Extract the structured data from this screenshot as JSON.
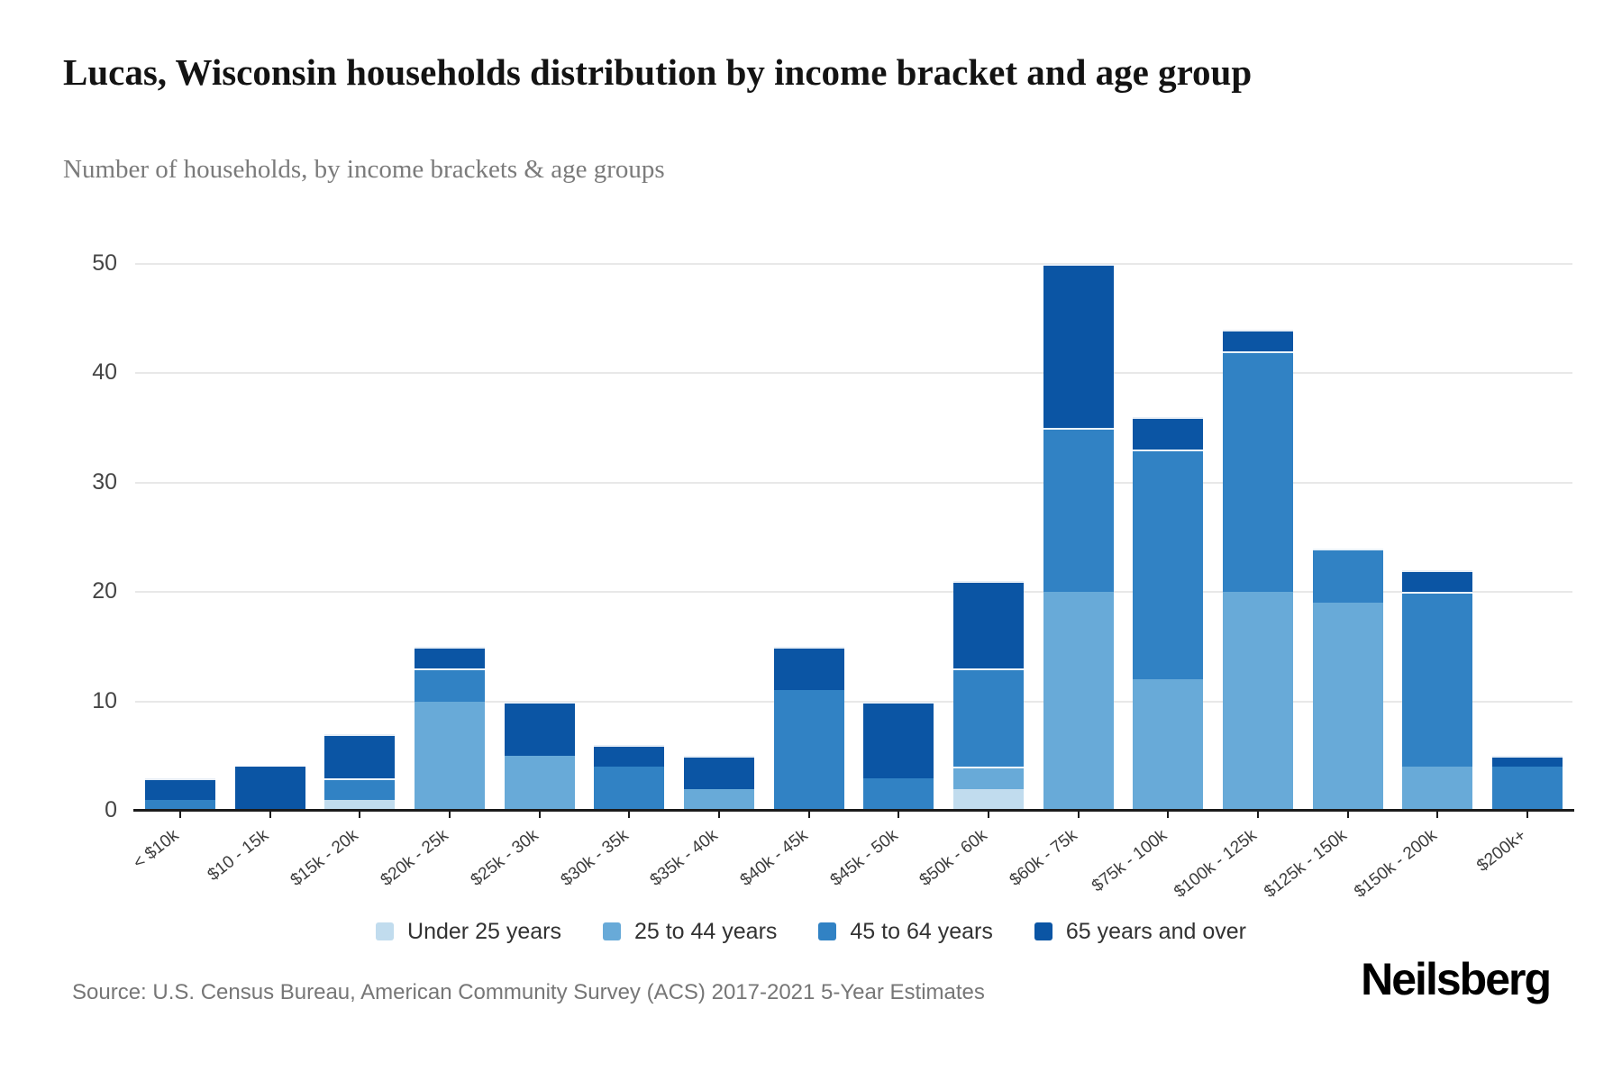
{
  "header": {
    "title": "Lucas, Wisconsin households distribution by income bracket and age group",
    "subtitle": "Number of households, by income brackets & age groups"
  },
  "footer": {
    "source": "Source: U.S. Census Bureau, American Community Survey (ACS) 2017-2021 5-Year Estimates",
    "brand": "Neilsberg"
  },
  "colors": {
    "axis": "#1b1b1b",
    "gridline": "#e8e8e8",
    "title_text": "#131313",
    "subtitle_text": "#7b7b7b",
    "tick_text": "#454545",
    "source_text": "#767676"
  },
  "chart_data": {
    "type": "bar",
    "stacked": true,
    "title": "Lucas, Wisconsin households distribution by income bracket and age group",
    "subtitle": "Number of households, by income brackets & age groups",
    "xlabel": "",
    "ylabel": "Number of households",
    "ylim": [
      0,
      50
    ],
    "yticks": [
      0,
      10,
      20,
      30,
      40,
      50
    ],
    "grid": "horizontal",
    "legend_position": "bottom",
    "categories": [
      "< $10k",
      "$10 - 15k",
      "$15k - 20k",
      "$20k - 25k",
      "$25k - 30k",
      "$30k - 35k",
      "$35k - 40k",
      "$40k - 45k",
      "$45k - 50k",
      "$50k - 60k",
      "$60k - 75k",
      "$75k - 100k",
      "$100k - 125k",
      "$125k - 150k",
      "$150k - 200k",
      "$200k+"
    ],
    "series": [
      {
        "name": "Under 25 years",
        "color": "#c1dcee",
        "values": [
          0,
          0,
          1,
          0,
          0,
          0,
          0,
          0,
          0,
          2,
          0,
          0,
          0,
          0,
          0,
          0
        ]
      },
      {
        "name": "25 to 44 years",
        "color": "#68aad8",
        "values": [
          0,
          0,
          0,
          10,
          5,
          0,
          2,
          0,
          0,
          2,
          20,
          12,
          20,
          19,
          4,
          0
        ]
      },
      {
        "name": "45 to 64 years",
        "color": "#3182c4",
        "values": [
          1,
          0,
          2,
          3,
          0,
          4,
          0,
          11,
          3,
          9,
          15,
          21,
          22,
          5,
          16,
          4
        ]
      },
      {
        "name": "65 years and over",
        "color": "#0b55a4",
        "values": [
          2,
          4,
          4,
          2,
          5,
          2,
          3,
          4,
          7,
          8,
          15,
          3,
          2,
          0,
          2,
          1
        ]
      }
    ]
  }
}
